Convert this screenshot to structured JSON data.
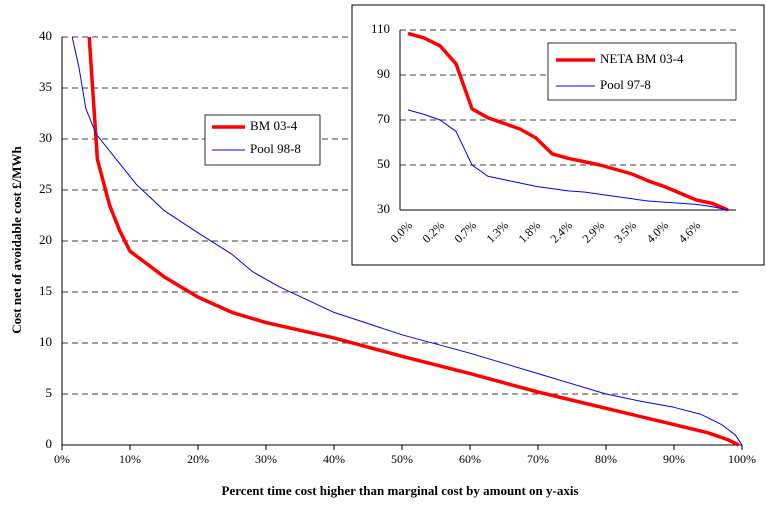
{
  "chart_data": [
    {
      "type": "line",
      "x_label": "Percent time cost higher than marginal cost by amount on y-axis",
      "y_label": "Cost net of avoidable cost £/MWh",
      "series": [
        {
          "name": "BM 03-4",
          "color": "#ff0000",
          "linewidth": 3.5,
          "x": [
            4,
            5.2,
            6,
            7,
            8.5,
            10,
            15,
            20,
            25,
            30,
            40,
            50,
            60,
            70,
            80,
            90,
            95,
            98,
            99.5
          ],
          "values": [
            40,
            28,
            26,
            23.5,
            21,
            19,
            16.5,
            14.5,
            13,
            12,
            10.5,
            8.7,
            7,
            5.2,
            3.6,
            2,
            1.2,
            0.5,
            0
          ]
        },
        {
          "name": "Pool 98-8",
          "color": "#0000ff",
          "linewidth": 1,
          "x": [
            1.5,
            2.5,
            3.5,
            5,
            8,
            11,
            15,
            20,
            25,
            28,
            32,
            40,
            50,
            60,
            70,
            80,
            85,
            90,
            94,
            97,
            99,
            100
          ],
          "values": [
            40,
            37,
            33,
            30.5,
            28,
            25.5,
            23,
            20.8,
            18.7,
            17,
            15.5,
            13,
            10.8,
            9,
            7,
            5,
            4.3,
            3.7,
            3,
            2,
            1,
            0
          ]
        }
      ],
      "xlim": [
        0,
        100
      ],
      "xticks": [
        {
          "value": 0,
          "label": "0%"
        },
        {
          "value": 10,
          "label": "10%"
        },
        {
          "value": 20,
          "label": "20%"
        },
        {
          "value": 30,
          "label": "30%"
        },
        {
          "value": 40,
          "label": "40%"
        },
        {
          "value": 50,
          "label": "50%"
        },
        {
          "value": 60,
          "label": "60%"
        },
        {
          "value": 70,
          "label": "70%"
        },
        {
          "value": 80,
          "label": "80%"
        },
        {
          "value": 90,
          "label": "90%"
        },
        {
          "value": 100,
          "label": "100%"
        }
      ],
      "ylim": [
        0,
        40
      ],
      "yticks": [
        0,
        5,
        10,
        15,
        20,
        25,
        30,
        35,
        40
      ],
      "grid": true
    },
    {
      "type": "line",
      "categories": [
        "0.0%",
        null,
        "0.2%",
        null,
        "0.7%",
        null,
        "1.3%",
        null,
        "1.8%",
        null,
        "2.4%",
        null,
        "2.9%",
        null,
        "3.5%",
        null,
        "4.0%",
        null,
        "4.6%",
        null,
        null
      ],
      "series": [
        {
          "name": "NETA BM 03-4",
          "color": "#ff0000",
          "linewidth": 3.5,
          "values": [
            108.5,
            106.5,
            103,
            95,
            75,
            71,
            68.5,
            66,
            62,
            55,
            53,
            51.5,
            50,
            48,
            46,
            43,
            40.5,
            37.5,
            34.5,
            33,
            30
          ]
        },
        {
          "name": "Pool 97-8",
          "color": "#0000ff",
          "linewidth": 1,
          "values": [
            74.5,
            72.5,
            70,
            65,
            50,
            45,
            43.5,
            42,
            40.5,
            39.5,
            38.5,
            38,
            37,
            36,
            35,
            34,
            33.5,
            33,
            32.5,
            31.5,
            30
          ]
        }
      ],
      "ylim": [
        30,
        110
      ],
      "yticks": [
        30,
        50,
        70,
        90,
        110
      ],
      "grid": true
    }
  ]
}
